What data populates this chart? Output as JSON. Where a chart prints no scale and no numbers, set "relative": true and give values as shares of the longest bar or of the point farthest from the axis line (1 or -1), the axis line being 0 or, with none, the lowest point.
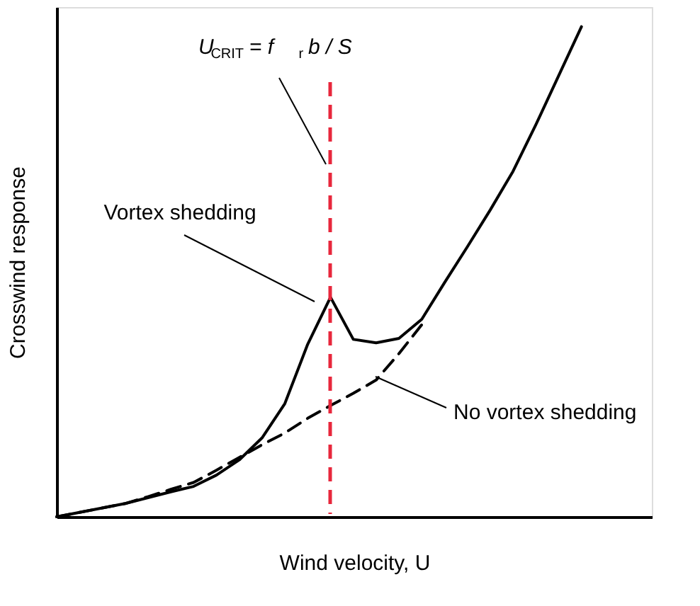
{
  "chart_data": {
    "type": "line",
    "relative": true,
    "xlabel": "Wind velocity, U",
    "ylabel": "Crosswind response",
    "categories": [
      null,
      null,
      null,
      null,
      null,
      null,
      null,
      null,
      null,
      null,
      null,
      null,
      null,
      null,
      null,
      null,
      null,
      null,
      null,
      null,
      null,
      null,
      null,
      null
    ],
    "series": [
      {
        "color": "#000000",
        "line_style": "solid",
        "values": [
          0,
          0.009,
          0.018,
          0.027,
          0.039,
          0.051,
          0.062,
          0.085,
          0.116,
          0.161,
          0.231,
          0.352,
          0.448,
          0.362,
          0.355,
          0.364,
          0.403,
          0.478,
          0.551,
          0.626,
          0.705,
          0.8,
          0.9,
          1
        ]
      },
      {
        "color": "#000000",
        "line_style": "dashed",
        "values": [
          0,
          0.009,
          0.018,
          0.027,
          0.041,
          0.056,
          0.07,
          0.095,
          0.121,
          0.147,
          0.171,
          0.201,
          0.227,
          0.252,
          0.279,
          0.333,
          0.392,
          null,
          null,
          null,
          null,
          null,
          null,
          null
        ]
      }
    ],
    "annotations": [
      "U$_{CRIT}$ = f$_{r}$b / S",
      "Vortex shedding",
      "No vortex shedding"
    ],
    "grid": false
  }
}
